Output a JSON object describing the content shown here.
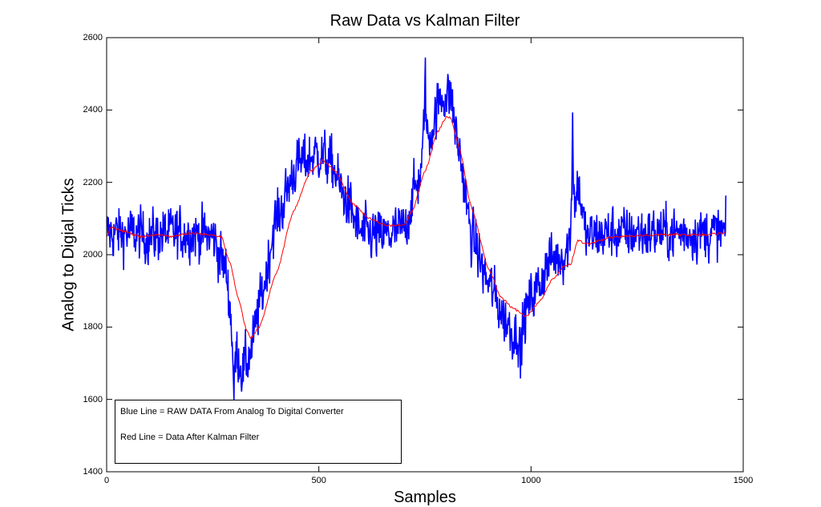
{
  "chart_data": {
    "type": "line",
    "title": "Raw Data vs Kalman Filter",
    "xlabel": "Samples",
    "ylabel": "Analog to Digial Ticks",
    "xlim": [
      0,
      1500
    ],
    "ylim": [
      1400,
      2600
    ],
    "xticks": [
      0,
      500,
      1000,
      1500
    ],
    "yticks": [
      1400,
      1600,
      1800,
      2000,
      2200,
      2400,
      2600
    ],
    "xtick_labels": [
      "0",
      "500",
      "1000",
      "1500"
    ],
    "ytick_labels": [
      "1400",
      "1600",
      "1800",
      "2000",
      "2200",
      "2400",
      "2600"
    ],
    "grid": false,
    "legend_position": "lower-left",
    "annotations": [
      "Blue Line = RAW DATA From Analog To Digital Converter",
      "Red Line = Data After Kalman Filter"
    ],
    "n_samples": 1460,
    "series": [
      {
        "name": "Raw Data",
        "color": "#0000ff",
        "description": "Noisy raw ADC readings (approx ±60 ticks noise around the underlying signal)",
        "x": [
          0,
          50,
          100,
          150,
          200,
          250,
          280,
          300,
          320,
          340,
          360,
          400,
          450,
          500,
          530,
          560,
          600,
          650,
          700,
          730,
          760,
          790,
          810,
          830,
          860,
          900,
          940,
          960,
          980,
          1000,
          1050,
          1080,
          1100,
          1110,
          1130,
          1200,
          1300,
          1400,
          1460
        ],
        "values": [
          2060,
          2060,
          2050,
          2060,
          2060,
          2050,
          1960,
          1760,
          1680,
          1730,
          1860,
          2100,
          2250,
          2280,
          2250,
          2160,
          2060,
          2050,
          2070,
          2190,
          2330,
          2440,
          2440,
          2290,
          2050,
          1920,
          1820,
          1780,
          1810,
          1880,
          1990,
          2000,
          2080,
          2200,
          2050,
          2060,
          2060,
          2060,
          2060
        ],
        "spikes": [
          {
            "x": 1098,
            "value": 2380
          },
          {
            "x": 750,
            "value": 2525
          },
          {
            "x": 300,
            "value": 1600
          },
          {
            "x": 975,
            "value": 1680
          }
        ],
        "noise_amplitude": 65
      },
      {
        "name": "Kalman Filter",
        "color": "#ff0000",
        "x": [
          0,
          10,
          40,
          80,
          120,
          150,
          200,
          250,
          270,
          290,
          310,
          330,
          340,
          360,
          400,
          440,
          480,
          510,
          540,
          580,
          620,
          660,
          680,
          700,
          720,
          750,
          780,
          800,
          810,
          830,
          860,
          900,
          930,
          960,
          990,
          1020,
          1050,
          1080,
          1095,
          1100,
          1110,
          1130,
          1200,
          1300,
          1400,
          1460
        ],
        "values": [
          2050,
          2075,
          2065,
          2050,
          2055,
          2050,
          2060,
          2055,
          2050,
          1980,
          1880,
          1790,
          1770,
          1800,
          1950,
          2120,
          2230,
          2260,
          2230,
          2140,
          2100,
          2080,
          2080,
          2080,
          2120,
          2230,
          2340,
          2380,
          2380,
          2300,
          2130,
          1960,
          1880,
          1850,
          1830,
          1870,
          1930,
          1970,
          1975,
          2000,
          2040,
          2030,
          2050,
          2055,
          2055,
          2060
        ]
      }
    ]
  },
  "figure": {
    "title": "Raw Data vs Kalman Filter",
    "xlabel": "Samples",
    "ylabel": "Analog to Digial Ticks",
    "legend": {
      "line1": "Blue Line = RAW DATA From Analog To Digital Converter",
      "line2": "Red Line = Data After Kalman Filter"
    }
  }
}
